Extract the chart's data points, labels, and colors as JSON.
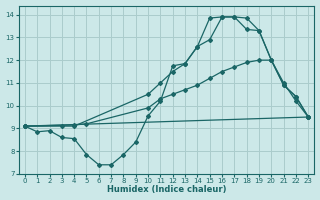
{
  "xlabel": "Humidex (Indice chaleur)",
  "bg_color": "#cce8e8",
  "grid_color": "#aacccc",
  "line_color": "#1a6666",
  "xmin": -0.5,
  "xmax": 23.5,
  "ymin": 7,
  "ymax": 14.4,
  "curve1_x": [
    0,
    1,
    2,
    3,
    4,
    5,
    6,
    7,
    8,
    9,
    10,
    11,
    12,
    13,
    14,
    15,
    16,
    17,
    18,
    19,
    20,
    21,
    22,
    23
  ],
  "curve1_y": [
    9.1,
    8.85,
    8.9,
    8.6,
    8.55,
    7.85,
    7.4,
    7.4,
    7.85,
    8.4,
    9.55,
    10.2,
    11.75,
    11.85,
    12.6,
    12.9,
    13.9,
    13.9,
    13.85,
    13.3,
    12.0,
    10.9,
    10.4,
    9.5
  ],
  "curve2_x": [
    0,
    3,
    4,
    10,
    11,
    12,
    13,
    14,
    15,
    16,
    17,
    18,
    19,
    20,
    21,
    22,
    23
  ],
  "curve2_y": [
    9.1,
    9.1,
    9.1,
    10.5,
    11.0,
    11.5,
    11.85,
    12.6,
    13.85,
    13.9,
    13.9,
    13.35,
    13.3,
    12.0,
    10.9,
    10.4,
    9.5
  ],
  "curve3_x": [
    0,
    4,
    5,
    10,
    11,
    12,
    13,
    14,
    15,
    16,
    17,
    18,
    19,
    20,
    21,
    22,
    23
  ],
  "curve3_y": [
    9.1,
    9.15,
    9.2,
    9.9,
    10.3,
    10.5,
    10.7,
    10.9,
    11.2,
    11.5,
    11.7,
    11.9,
    12.0,
    12.0,
    11.0,
    10.2,
    9.5
  ],
  "curve4_x": [
    0,
    23
  ],
  "curve4_y": [
    9.1,
    9.5
  ]
}
